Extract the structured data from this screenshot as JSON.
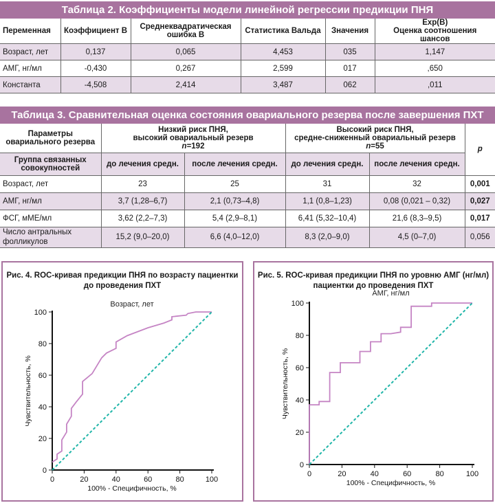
{
  "table2": {
    "title": "Таблица 2. Коэффициенты модели линейной регрессии предикции ПНЯ",
    "headers": [
      "Переменная",
      "Коэффициент B",
      "Среднеквадратическая ошибка B",
      "Статистика Вальда",
      "Значения",
      "Exp(B) Оценка соотношения шансов"
    ],
    "header_lines": [
      [
        "Переменная"
      ],
      [
        "Коэффициент B"
      ],
      [
        "Среднеквадратическая",
        "ошибка B"
      ],
      [
        "Статистика Вальда"
      ],
      [
        "Значения"
      ],
      [
        "Exp(B)",
        "Оценка соотношения шансов"
      ]
    ],
    "rows": [
      [
        "Возраст, лет",
        "0,137",
        "0,065",
        "4,453",
        "035",
        "1,147"
      ],
      [
        "АМГ, нг/мл",
        "-0,430",
        "0,267",
        "2,599",
        "017",
        ",650"
      ],
      [
        "Константа",
        "-4,508",
        "2,414",
        "3,487",
        "062",
        ",011"
      ]
    ]
  },
  "table3": {
    "title": "Таблица 3. Сравнительная оценка состояния овариального резерва после завершения ПХТ",
    "param_header": [
      "Параметры",
      "овариального резерва"
    ],
    "group_low": [
      "Низкий риск ПНЯ,",
      "высокий овариальный резерв"
    ],
    "group_low_n": "n",
    "group_low_nval": "=192",
    "group_high": [
      "Высокий риск ПНЯ,",
      "средне-сниженный овариальный резерв"
    ],
    "group_high_n": "n",
    "group_high_nval": "=55",
    "p_header": "p",
    "subgroup_label": [
      "Группа связанных",
      "совокупностей"
    ],
    "sub_before": "до лечения средн.",
    "sub_after": "после лечения средн.",
    "rows": [
      {
        "label": [
          "Возраст, лет"
        ],
        "values": [
          "23",
          "25",
          "31",
          "32"
        ],
        "p": "0,001",
        "p_bold": true
      },
      {
        "label": [
          "АМГ, нг/мл"
        ],
        "values": [
          "3,7 (1,28–6,7)",
          "2,1 (0,73–4,8)",
          "1,1 (0,8–1,23)",
          "0,08 (0,021 – 0,32)"
        ],
        "p": "0,027",
        "p_bold": true
      },
      {
        "label": [
          "ФСГ, мМЕ/мл"
        ],
        "values": [
          "3,62 (2,2–7,3)",
          "5,4 (2,9–8,1)",
          "6,41 (5,32–10,4)",
          "21,6  (8,3–9,5)"
        ],
        "p": "0,017",
        "p_bold": true
      },
      {
        "label": [
          "Число антральных",
          "фолликулов"
        ],
        "values": [
          "15,2 (9,0–20,0)",
          "6,6  (4,0–12,0)",
          "8,3 (2,0–9,0)",
          "4,5  (0–7,0)"
        ],
        "p": "0,056",
        "p_bold": false
      }
    ]
  },
  "chart_data": [
    {
      "type": "line",
      "figure_title": [
        "Рис. 4. ROC-кривая предикции ПНЯ по возрасту пациентки",
        "до проведения ПХТ"
      ],
      "title": "Возраст, лет",
      "xlabel": "100% - Специфичность, %",
      "ylabel": "Чувствительность, %",
      "xlim": [
        0,
        100
      ],
      "ylim": [
        0,
        100
      ],
      "xticks": [
        0,
        20,
        40,
        60,
        80,
        100
      ],
      "yticks": [
        0,
        20,
        40,
        60,
        80,
        100
      ],
      "grid": false,
      "series": [
        {
          "name": "ROC",
          "color": "#c584c4",
          "x": [
            0,
            3,
            3,
            6,
            6,
            9,
            9,
            12,
            12,
            15,
            19,
            19,
            25,
            31,
            34,
            40,
            40,
            47,
            60,
            70,
            75,
            75,
            84,
            85,
            90,
            100
          ],
          "y": [
            5,
            7,
            10,
            12,
            19,
            24,
            29,
            34,
            39,
            43,
            48,
            56,
            61,
            71,
            74,
            77,
            81,
            85,
            90,
            93,
            95,
            97,
            98,
            99,
            100,
            100
          ]
        },
        {
          "name": "reference",
          "color": "#1fb5a8",
          "dashed": true,
          "x": [
            0,
            100
          ],
          "y": [
            0,
            100
          ]
        }
      ]
    },
    {
      "type": "line",
      "figure_title": [
        "Рис. 5. ROC-кривая предикции ПНЯ по уровню АМГ (нг/мл)",
        "пациентки до проведения ПХТ"
      ],
      "title": "АМГ, нг/мл",
      "xlabel": "100% - Специфичность, %",
      "ylabel": "Чувствительность, %",
      "xlim": [
        0,
        100
      ],
      "ylim": [
        0,
        100
      ],
      "xticks": [
        0,
        20,
        40,
        60,
        80,
        100
      ],
      "yticks": [
        0,
        20,
        40,
        60,
        80,
        100
      ],
      "grid": false,
      "series": [
        {
          "name": "ROC",
          "color": "#c584c4",
          "x": [
            0,
            0,
            6,
            6,
            12.5,
            12.5,
            19,
            19,
            31,
            31,
            37.5,
            37.5,
            44,
            44,
            50,
            56,
            56,
            62.5,
            62.5,
            75,
            75,
            100
          ],
          "y": [
            0,
            37,
            37,
            39,
            39,
            57,
            57,
            63,
            63,
            70,
            70,
            76,
            76,
            81,
            81,
            82,
            85,
            85,
            98,
            98,
            100,
            100
          ]
        },
        {
          "name": "reference",
          "color": "#1fb5a8",
          "dashed": true,
          "x": [
            0,
            100
          ],
          "y": [
            0,
            100
          ]
        }
      ]
    }
  ],
  "colors": {
    "accent": "#a8739f",
    "row_highlight": "#e7dbe8",
    "roc_line": "#c584c4",
    "reference_line": "#1fb5a8"
  }
}
